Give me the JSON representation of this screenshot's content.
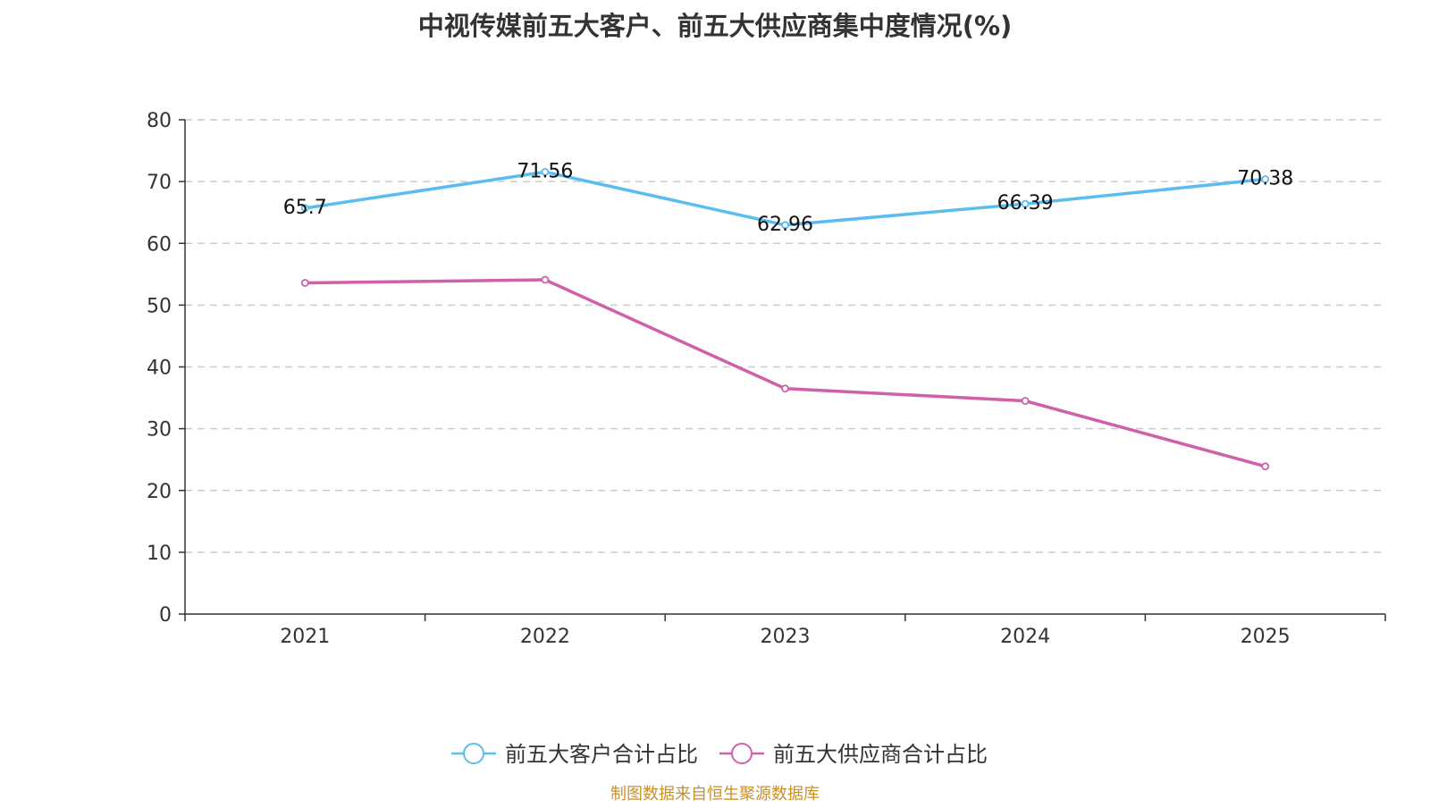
{
  "chart_data": {
    "type": "line",
    "title": "中视传媒前五大客户、前五大供应商集中度情况(%)",
    "categories": [
      "2021",
      "2022",
      "2023",
      "2024",
      "2025"
    ],
    "series": [
      {
        "name": "前五大客户合计占比",
        "color": "#5bbcf0",
        "values": [
          65.7,
          71.56,
          62.96,
          66.39,
          70.38
        ],
        "labels": [
          "65.7",
          "71.56",
          "62.96",
          "66.39",
          "70.38"
        ]
      },
      {
        "name": "前五大供应商合计占比",
        "color": "#d060a8",
        "values": [
          53.6,
          54.1,
          36.5,
          34.5,
          23.9
        ]
      }
    ],
    "ylim": [
      0,
      80
    ],
    "yticks": [
      "0",
      "10",
      "20",
      "30",
      "40",
      "50",
      "60",
      "70",
      "80"
    ],
    "grid": true,
    "legend_position": "bottom-center"
  },
  "source_note": "制图数据来自恒生聚源数据库"
}
